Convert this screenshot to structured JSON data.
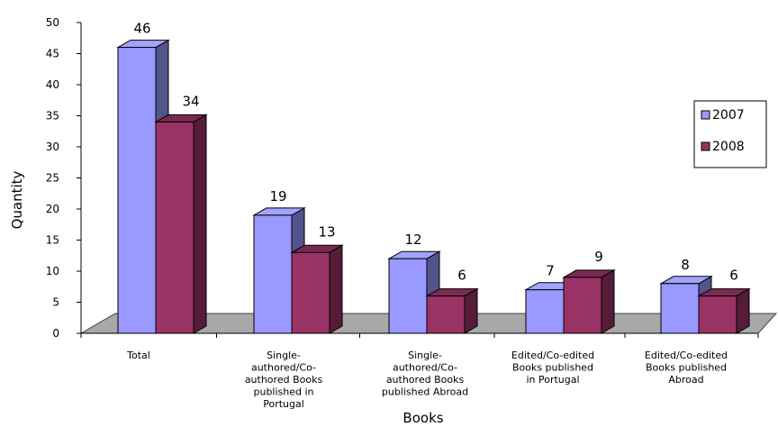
{
  "chart_data": {
    "type": "bar",
    "title": "",
    "xlabel": "Books",
    "ylabel": "Quantity",
    "ylim": [
      0,
      50
    ],
    "yticks": [
      0,
      5,
      10,
      15,
      20,
      25,
      30,
      35,
      40,
      45,
      50
    ],
    "categories": [
      [
        "Total"
      ],
      [
        "Single-",
        "authored/Co-",
        "authored Books",
        "published in",
        "Portugal"
      ],
      [
        "Single-",
        "authored/Co-",
        "authored Books",
        "published Abroad"
      ],
      [
        "Edited/Co-edited",
        "Books published",
        "in Portugal"
      ],
      [
        "Edited/Co-edited",
        "Books published",
        "Abroad"
      ]
    ],
    "series": [
      {
        "name": "2007",
        "values": [
          46,
          19,
          12,
          7,
          8
        ],
        "color": "#9999ff"
      },
      {
        "name": "2008",
        "values": [
          34,
          13,
          6,
          9,
          6
        ],
        "color": "#993366"
      }
    ],
    "grid": false,
    "legend_position": "right",
    "style": "3d-clustered-column"
  }
}
